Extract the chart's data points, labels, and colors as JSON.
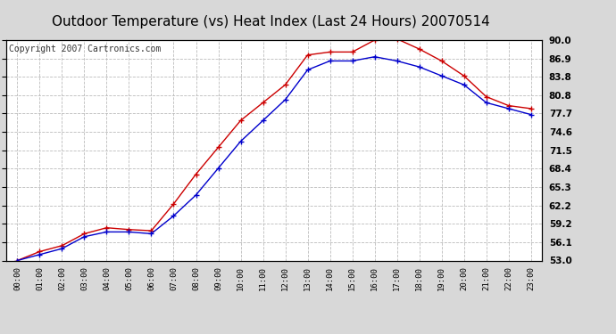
{
  "title": "Outdoor Temperature (vs) Heat Index (Last 24 Hours) 20070514",
  "copyright": "Copyright 2007 Cartronics.com",
  "x_labels": [
    "00:00",
    "01:00",
    "02:00",
    "03:00",
    "04:00",
    "05:00",
    "06:00",
    "07:00",
    "08:00",
    "09:00",
    "10:00",
    "11:00",
    "12:00",
    "13:00",
    "14:00",
    "15:00",
    "16:00",
    "17:00",
    "18:00",
    "19:00",
    "20:00",
    "21:00",
    "22:00",
    "23:00"
  ],
  "temp_red": [
    53.0,
    54.5,
    55.5,
    57.5,
    58.5,
    58.2,
    58.0,
    62.5,
    67.5,
    72.0,
    76.5,
    79.5,
    82.5,
    87.5,
    88.0,
    88.0,
    90.0,
    90.2,
    88.5,
    86.5,
    84.0,
    80.5,
    79.0,
    78.5
  ],
  "temp_blue": [
    53.0,
    54.0,
    55.0,
    57.0,
    57.8,
    57.8,
    57.5,
    60.5,
    64.0,
    68.5,
    73.0,
    76.5,
    80.0,
    85.0,
    86.5,
    86.5,
    87.2,
    86.5,
    85.5,
    84.0,
    82.5,
    79.5,
    78.5,
    77.5
  ],
  "ylim": [
    53.0,
    90.0
  ],
  "yticks": [
    53.0,
    56.1,
    59.2,
    62.2,
    65.3,
    68.4,
    71.5,
    74.6,
    77.7,
    80.8,
    83.8,
    86.9,
    90.0
  ],
  "bg_color": "#d8d8d8",
  "plot_bg": "#ffffff",
  "red_color": "#cc0000",
  "blue_color": "#0000cc",
  "grid_color": "#bbbbbb",
  "title_fontsize": 11,
  "copyright_fontsize": 7
}
